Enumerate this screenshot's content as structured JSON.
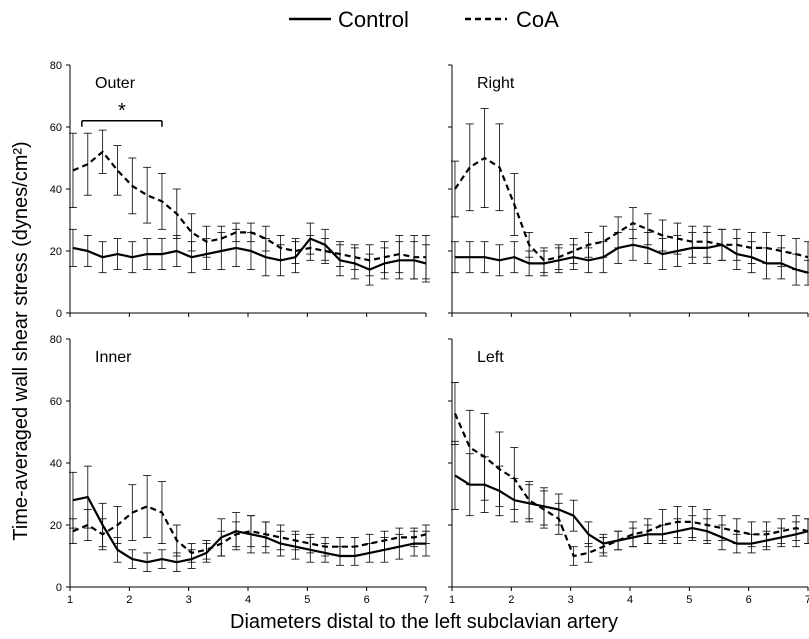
{
  "figure": {
    "legend": [
      {
        "name": "Control",
        "style": "solid"
      },
      {
        "name": "CoA",
        "style": "dashed"
      }
    ],
    "ylabel": "Time-averaged wall shear stress (dynes/cm²)",
    "xlabel": "Diameters distal to the left subclavian artery"
  },
  "chart_data": [
    {
      "type": "line",
      "title": "Outer",
      "xlim": [
        1,
        7
      ],
      "ylim": [
        0,
        80
      ],
      "xticks": [
        1,
        2,
        3,
        4,
        5,
        6,
        7
      ],
      "yticks": [
        0,
        20,
        40,
        60,
        80
      ],
      "x": [
        1.05,
        1.3,
        1.55,
        1.8,
        2.05,
        2.3,
        2.55,
        2.8,
        3.05,
        3.3,
        3.55,
        3.8,
        4.05,
        4.3,
        4.55,
        4.8,
        5.05,
        5.3,
        5.55,
        5.8,
        6.05,
        6.3,
        6.55,
        6.8,
        7.0
      ],
      "series": [
        {
          "name": "Control",
          "style": "solid",
          "values": [
            21,
            20,
            18,
            19,
            18,
            19,
            19,
            20,
            18,
            19,
            20,
            21,
            20,
            18,
            17,
            18,
            24,
            22,
            17,
            16,
            14,
            16,
            17,
            17,
            16
          ],
          "errors": [
            6,
            5,
            5,
            5,
            5,
            5,
            5,
            5,
            5,
            5,
            6,
            6,
            6,
            6,
            5,
            5,
            5,
            5,
            5,
            5,
            5,
            5,
            6,
            6,
            6
          ]
        },
        {
          "name": "CoA",
          "style": "dashed",
          "values": [
            46,
            48,
            52,
            46,
            41,
            38,
            36,
            32,
            26,
            23,
            24,
            26,
            26,
            24,
            21,
            20,
            21,
            20,
            19,
            18,
            17,
            18,
            19,
            18,
            18
          ],
          "errors": [
            12,
            10,
            7,
            8,
            9,
            9,
            9,
            8,
            6,
            5,
            4,
            3,
            3,
            4,
            4,
            4,
            4,
            4,
            4,
            4,
            5,
            5,
            6,
            7,
            7
          ]
        }
      ],
      "annotations": [
        {
          "text": "*",
          "x_start": 1.2,
          "x_end": 2.55,
          "y": 62
        }
      ]
    },
    {
      "type": "line",
      "title": "Right",
      "xlim": [
        1,
        7
      ],
      "ylim": [
        0,
        80
      ],
      "xticks": [
        1,
        2,
        3,
        4,
        5,
        6,
        7
      ],
      "yticks": [
        0,
        20,
        40,
        60,
        80
      ],
      "x": [
        1.05,
        1.3,
        1.55,
        1.8,
        2.05,
        2.3,
        2.55,
        2.8,
        3.05,
        3.3,
        3.55,
        3.8,
        4.05,
        4.3,
        4.55,
        4.8,
        5.05,
        5.3,
        5.55,
        5.8,
        6.05,
        6.3,
        6.55,
        6.8,
        7.0
      ],
      "series": [
        {
          "name": "Control",
          "style": "solid",
          "values": [
            18,
            18,
            18,
            17,
            18,
            16,
            16,
            17,
            18,
            17,
            18,
            21,
            22,
            21,
            19,
            20,
            21,
            21,
            22,
            19,
            18,
            16,
            16,
            14,
            13
          ],
          "errors": [
            5,
            5,
            5,
            5,
            5,
            4,
            4,
            4,
            4,
            4,
            5,
            5,
            5,
            5,
            5,
            5,
            5,
            5,
            5,
            5,
            5,
            5,
            5,
            5,
            4
          ]
        },
        {
          "name": "CoA",
          "style": "dashed",
          "values": [
            40,
            47,
            50,
            47,
            35,
            22,
            17,
            18,
            20,
            22,
            23,
            26,
            29,
            27,
            25,
            24,
            23,
            23,
            22,
            22,
            21,
            21,
            20,
            19,
            18
          ],
          "errors": [
            9,
            14,
            16,
            14,
            10,
            4,
            4,
            4,
            4,
            4,
            5,
            5,
            5,
            5,
            5,
            5,
            5,
            5,
            5,
            5,
            5,
            5,
            5,
            5,
            5
          ]
        }
      ]
    },
    {
      "type": "line",
      "title": "Inner",
      "xlim": [
        1,
        7
      ],
      "ylim": [
        0,
        80
      ],
      "xticks": [
        1,
        2,
        3,
        4,
        5,
        6,
        7
      ],
      "yticks": [
        0,
        20,
        40,
        60,
        80
      ],
      "x": [
        1.05,
        1.3,
        1.55,
        1.8,
        2.05,
        2.3,
        2.55,
        2.8,
        3.05,
        3.3,
        3.55,
        3.8,
        4.05,
        4.3,
        4.55,
        4.8,
        5.05,
        5.3,
        5.55,
        5.8,
        6.05,
        6.3,
        6.55,
        6.8,
        7.0
      ],
      "series": [
        {
          "name": "Control",
          "style": "solid",
          "values": [
            28,
            29,
            20,
            12,
            9,
            8,
            9,
            8,
            9,
            11,
            16,
            18,
            17,
            16,
            14,
            13,
            12,
            11,
            10,
            10,
            11,
            12,
            13,
            14,
            14
          ],
          "errors": [
            9,
            10,
            7,
            4,
            3,
            3,
            3,
            3,
            3,
            3,
            6,
            6,
            6,
            5,
            4,
            4,
            4,
            3,
            3,
            3,
            3,
            4,
            4,
            4,
            4
          ]
        },
        {
          "name": "CoA",
          "style": "dashed",
          "values": [
            18,
            20,
            17,
            20,
            24,
            26,
            24,
            15,
            11,
            12,
            14,
            17,
            18,
            17,
            16,
            15,
            14,
            13,
            13,
            13,
            14,
            15,
            16,
            16,
            17
          ],
          "errors": [
            4,
            5,
            5,
            6,
            9,
            10,
            10,
            5,
            3,
            3,
            4,
            4,
            5,
            4,
            4,
            3,
            3,
            3,
            3,
            3,
            3,
            3,
            3,
            3,
            3
          ]
        }
      ]
    },
    {
      "type": "line",
      "title": "Left",
      "xlim": [
        1,
        7
      ],
      "ylim": [
        0,
        80
      ],
      "xticks": [
        1,
        2,
        3,
        4,
        5,
        6,
        7
      ],
      "yticks": [
        0,
        20,
        40,
        60,
        80
      ],
      "x": [
        1.05,
        1.3,
        1.55,
        1.8,
        2.05,
        2.3,
        2.55,
        2.8,
        3.05,
        3.3,
        3.55,
        3.8,
        4.05,
        4.3,
        4.55,
        4.8,
        5.05,
        5.3,
        5.55,
        5.8,
        6.05,
        6.3,
        6.55,
        6.8,
        7.0
      ],
      "series": [
        {
          "name": "Control",
          "style": "solid",
          "values": [
            36,
            33,
            33,
            31,
            28,
            27,
            26,
            25,
            23,
            17,
            14,
            15,
            16,
            17,
            17,
            18,
            19,
            18,
            16,
            14,
            14,
            15,
            16,
            17,
            18
          ],
          "errors": [
            11,
            10,
            9,
            8,
            7,
            6,
            6,
            5,
            5,
            4,
            3,
            3,
            3,
            3,
            3,
            4,
            4,
            4,
            4,
            3,
            3,
            3,
            3,
            4,
            4
          ]
        },
        {
          "name": "CoA",
          "style": "dashed",
          "values": [
            56,
            45,
            42,
            38,
            35,
            28,
            25,
            22,
            10,
            11,
            13,
            15,
            17,
            18,
            20,
            21,
            21,
            20,
            19,
            18,
            17,
            17,
            18,
            19,
            18
          ],
          "errors": [
            10,
            12,
            14,
            12,
            10,
            6,
            6,
            5,
            3,
            3,
            3,
            3,
            4,
            4,
            5,
            5,
            5,
            5,
            4,
            4,
            4,
            4,
            4,
            4,
            4
          ]
        }
      ]
    }
  ]
}
